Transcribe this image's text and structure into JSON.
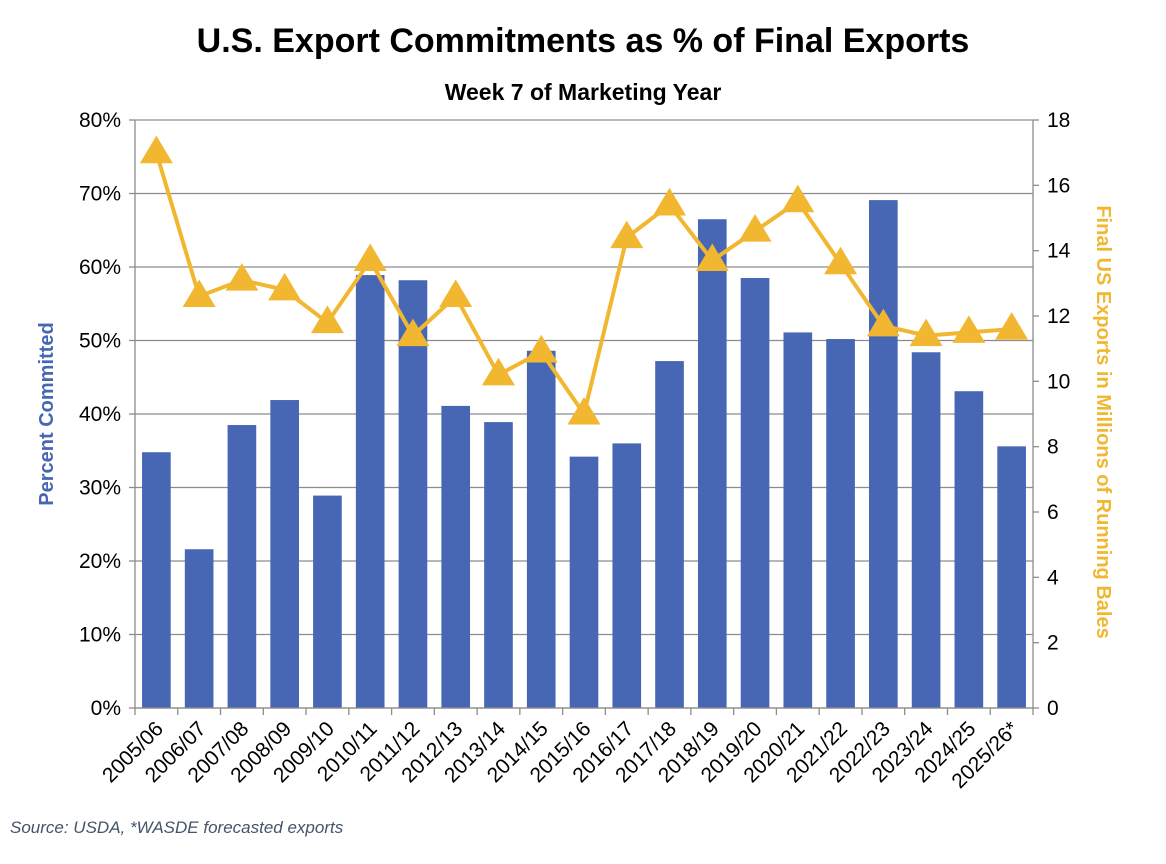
{
  "chart_data": {
    "type": "bar",
    "title": "U.S. Export Commitments as % of Final Exports",
    "subtitle": "Week 7 of Marketing Year",
    "xlabel": "",
    "ylabel": "Percent Committed",
    "y2label": "Final US Exports in Millions of Running Bales",
    "ylim": [
      0,
      80
    ],
    "y2lim": [
      0,
      18
    ],
    "yticks": [
      "0%",
      "10%",
      "20%",
      "30%",
      "40%",
      "50%",
      "60%",
      "70%",
      "80%"
    ],
    "y2ticks": [
      "0",
      "2",
      "4",
      "6",
      "8",
      "10",
      "12",
      "14",
      "16",
      "18"
    ],
    "grid": true,
    "categories": [
      "2005/06",
      "2006/07",
      "2007/08",
      "2008/09",
      "2009/10",
      "2010/11",
      "2011/12",
      "2012/13",
      "2013/14",
      "2014/15",
      "2015/16",
      "2016/17",
      "2017/18",
      "2018/19",
      "2019/20",
      "2020/21",
      "2021/22",
      "2022/23",
      "2023/24",
      "2024/25",
      "2025/26*"
    ],
    "series": [
      {
        "name": "Percent Committed",
        "type": "bar",
        "axis": "left",
        "color": "#4767b5",
        "values": [
          34.8,
          21.6,
          38.5,
          41.9,
          28.9,
          58.9,
          58.2,
          41.1,
          38.9,
          48.6,
          34.2,
          36.0,
          47.2,
          66.5,
          58.5,
          51.1,
          50.2,
          69.1,
          48.4,
          43.1,
          35.6
        ]
      },
      {
        "name": "Final US Exports (million bales)",
        "type": "line",
        "axis": "right",
        "marker": "triangle",
        "color": "#f2b731",
        "values": [
          17.0,
          12.6,
          13.1,
          12.8,
          11.8,
          13.7,
          11.4,
          12.6,
          10.2,
          10.9,
          9.0,
          14.4,
          15.4,
          13.7,
          14.6,
          15.5,
          13.6,
          11.7,
          11.4,
          11.5,
          11.6
        ]
      }
    ]
  },
  "source_note": "Source: USDA, *WASDE forecasted exports"
}
